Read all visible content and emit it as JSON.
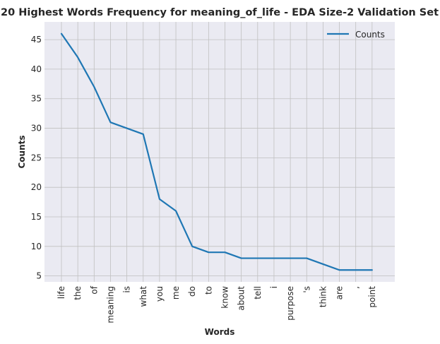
{
  "chart_data": {
    "type": "line",
    "title": "20 Highest Words Frequency for meaning_of_life - EDA Size-2 Validation Set",
    "xlabel": "Words",
    "ylabel": "Counts",
    "categories": [
      "life",
      "the",
      "of",
      "meaning",
      "is",
      "what",
      "you",
      "me",
      "do",
      "to",
      "know",
      "about",
      "tell",
      "i",
      "purpose",
      "'s",
      "think",
      "are",
      ",",
      "point"
    ],
    "series": [
      {
        "name": "Counts",
        "values": [
          46,
          42,
          37,
          31,
          30,
          29,
          18,
          16,
          10,
          9,
          9,
          8,
          8,
          8,
          8,
          8,
          7,
          6,
          6,
          6
        ]
      }
    ],
    "ylim": [
      4,
      48
    ],
    "yticks": [
      5,
      10,
      15,
      20,
      25,
      30,
      35,
      40,
      45
    ],
    "grid": true,
    "legend_position": "top-right",
    "colors": {
      "line": "#1f77b4",
      "plot_bg": "#eaeaf2",
      "grid": "#c0c0c0"
    }
  }
}
